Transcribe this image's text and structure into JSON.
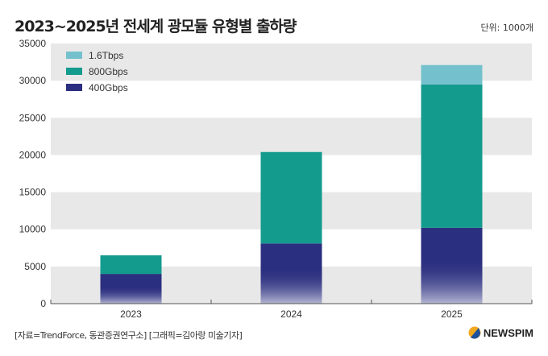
{
  "title": "2023~2025년 전세계 광모듈 유형별 출하량",
  "unit": "단위: 1000개",
  "source": "[자료=TrendForce, 동관증권연구소] [그래픽=김아랑 미술기자]",
  "logo": "NEWSPIM",
  "chart_data": {
    "type": "bar",
    "stacked": true,
    "title": "2023~2025년 전세계 광모듈 유형별 출하량",
    "categories": [
      "2023",
      "2024",
      "2025"
    ],
    "series": [
      {
        "name": "400Gbps",
        "values": [
          4000,
          8100,
          10200
        ],
        "color": "#2b2f7f"
      },
      {
        "name": "800Gbps",
        "values": [
          2500,
          12300,
          19300
        ],
        "color": "#139b8e"
      },
      {
        "name": "1.6Tbps",
        "values": [
          0,
          0,
          2600
        ],
        "color": "#74c1cd"
      }
    ],
    "ylim": [
      0,
      35000
    ],
    "yticks": [
      0,
      5000,
      10000,
      15000,
      20000,
      25000,
      30000,
      35000
    ],
    "grid": "alternating bands",
    "legend": "top-left",
    "xlabel": "",
    "ylabel": ""
  }
}
